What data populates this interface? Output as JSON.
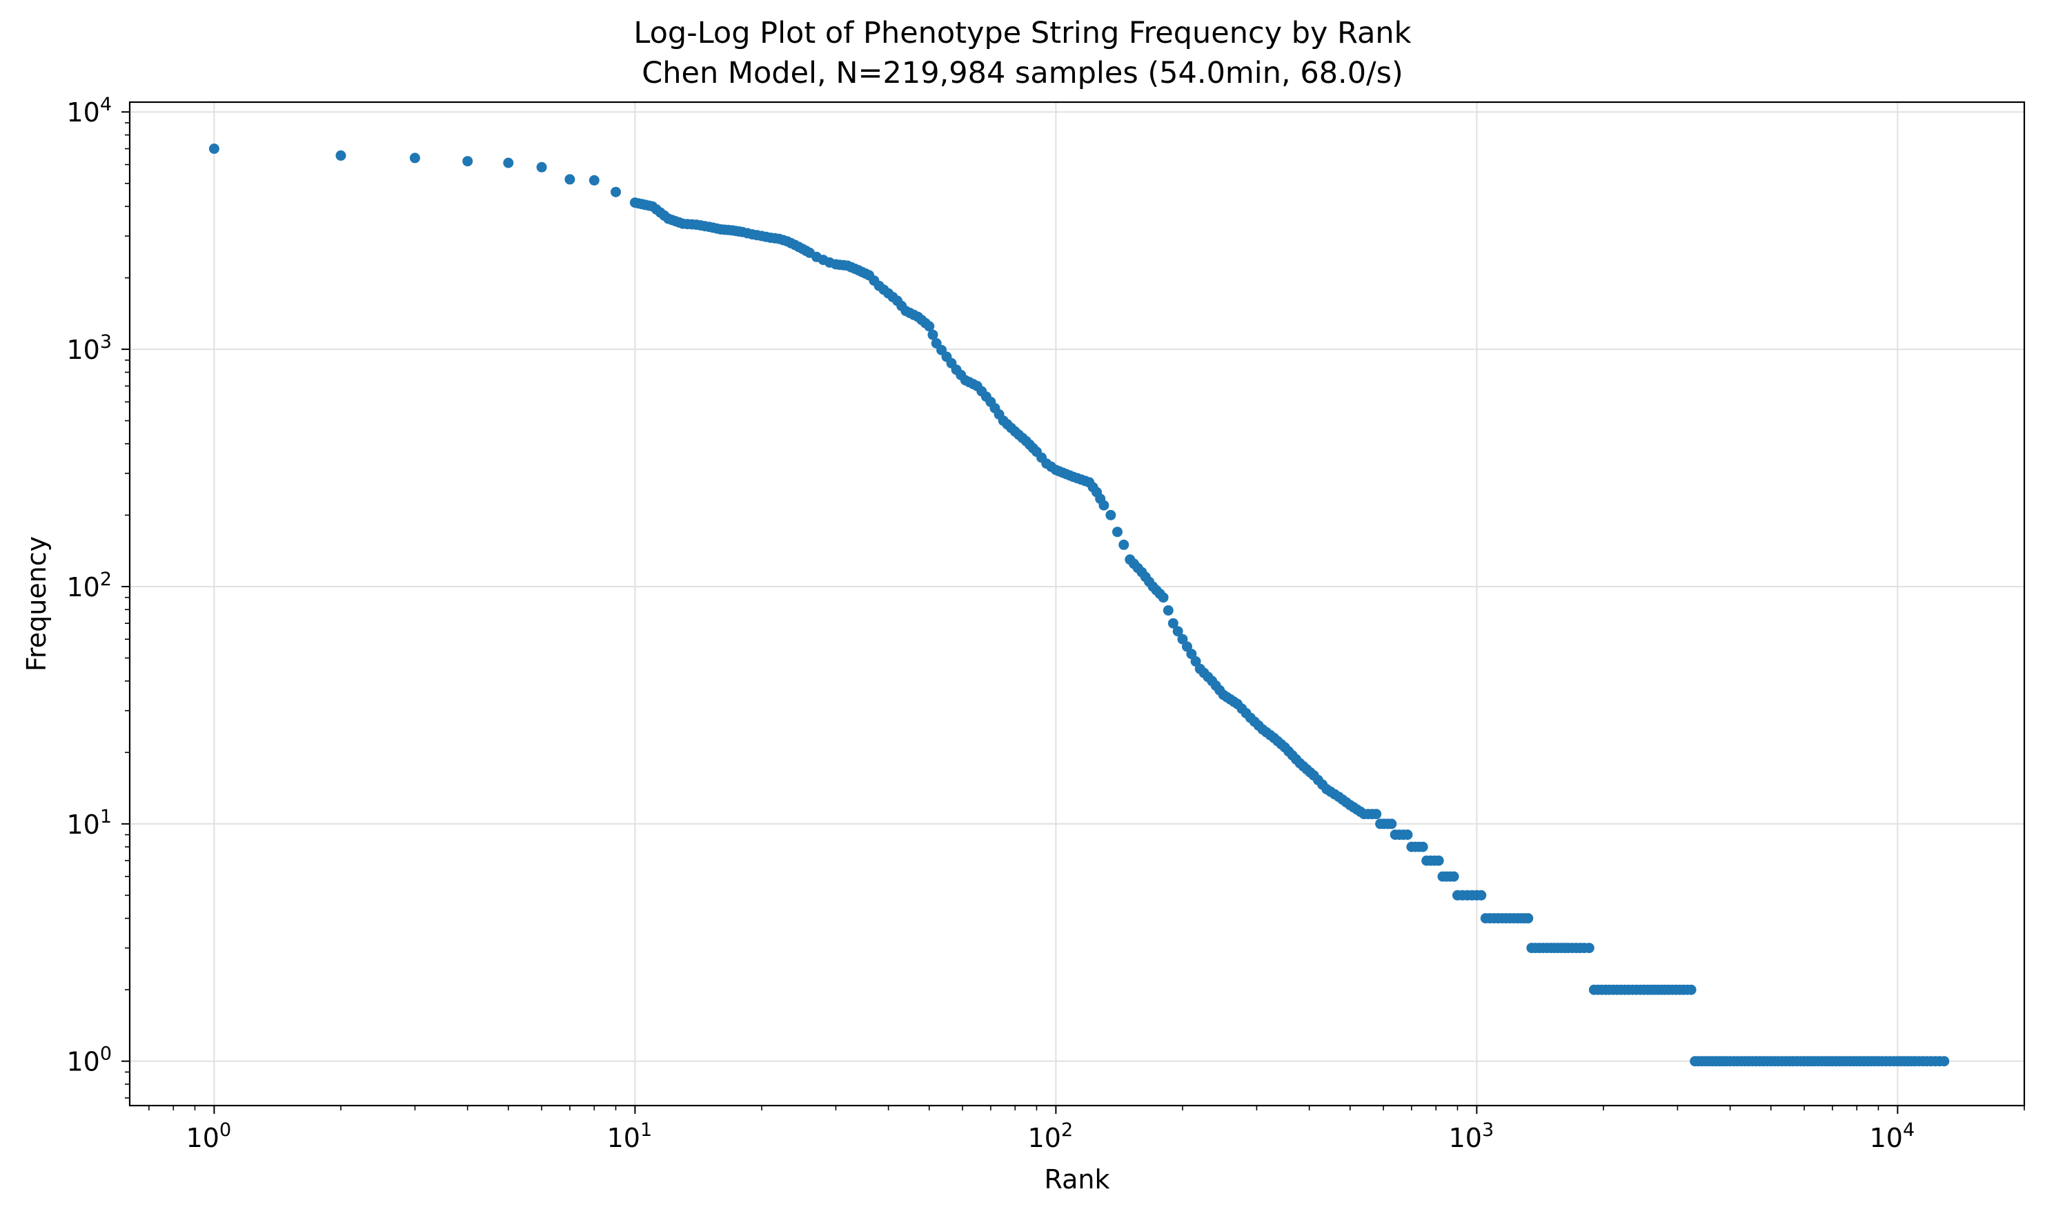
{
  "chart_data": {
    "type": "scatter",
    "title": "Log-Log Plot of Phenotype String Frequency by Rank",
    "subtitle": "Chen Model, N=219,984 samples (54.0min, 68.0/s)",
    "xlabel": "Rank",
    "ylabel": "Frequency",
    "xscale": "log",
    "yscale": "log",
    "xlim": [
      0.63,
      20000
    ],
    "ylim": [
      0.65,
      11000
    ],
    "grid": true,
    "legend": false,
    "color": "#1f77b4",
    "x_ticks": [
      {
        "base": "10",
        "exp": "0",
        "value": 1
      },
      {
        "base": "10",
        "exp": "1",
        "value": 10
      },
      {
        "base": "10",
        "exp": "2",
        "value": 100
      },
      {
        "base": "10",
        "exp": "3",
        "value": 1000
      },
      {
        "base": "10",
        "exp": "4",
        "value": 10000
      }
    ],
    "y_ticks": [
      {
        "base": "10",
        "exp": "0",
        "value": 1
      },
      {
        "base": "10",
        "exp": "1",
        "value": 10
      },
      {
        "base": "10",
        "exp": "2",
        "value": 100
      },
      {
        "base": "10",
        "exp": "3",
        "value": 1000
      },
      {
        "base": "10",
        "exp": "4",
        "value": 10000
      }
    ],
    "points": [
      [
        1,
        7000
      ],
      [
        2,
        6550
      ],
      [
        3,
        6400
      ],
      [
        4,
        6200
      ],
      [
        5,
        6100
      ],
      [
        6,
        5850
      ],
      [
        7,
        5200
      ],
      [
        8,
        5150
      ],
      [
        9,
        4600
      ],
      [
        10,
        4150
      ],
      [
        11,
        4000
      ],
      [
        12,
        3550
      ],
      [
        13,
        3380
      ],
      [
        14,
        3350
      ],
      [
        15,
        3280
      ],
      [
        16,
        3200
      ],
      [
        17,
        3170
      ],
      [
        18,
        3120
      ],
      [
        19,
        3050
      ],
      [
        20,
        3000
      ],
      [
        21,
        2950
      ],
      [
        22,
        2920
      ],
      [
        23,
        2850
      ],
      [
        24,
        2750
      ],
      [
        25,
        2650
      ],
      [
        26,
        2550
      ],
      [
        27,
        2450
      ],
      [
        28,
        2380
      ],
      [
        29,
        2320
      ],
      [
        30,
        2280
      ],
      [
        32,
        2250
      ],
      [
        34,
        2150
      ],
      [
        36,
        2050
      ],
      [
        38,
        1850
      ],
      [
        40,
        1720
      ],
      [
        42,
        1600
      ],
      [
        44,
        1450
      ],
      [
        47,
        1370
      ],
      [
        50,
        1250
      ],
      [
        52,
        1060
      ],
      [
        55,
        930
      ],
      [
        58,
        820
      ],
      [
        61,
        740
      ],
      [
        65,
        700
      ],
      [
        70,
        600
      ],
      [
        75,
        500
      ],
      [
        80,
        450
      ],
      [
        85,
        410
      ],
      [
        90,
        370
      ],
      [
        95,
        330
      ],
      [
        100,
        310
      ],
      [
        110,
        290
      ],
      [
        120,
        275
      ],
      [
        125,
        250
      ],
      [
        130,
        220
      ],
      [
        135,
        200
      ],
      [
        140,
        170
      ],
      [
        145,
        150
      ],
      [
        150,
        130
      ],
      [
        160,
        115
      ],
      [
        170,
        100
      ],
      [
        180,
        90
      ],
      [
        190,
        70
      ],
      [
        200,
        60
      ],
      [
        210,
        52
      ],
      [
        220,
        45
      ],
      [
        235,
        40
      ],
      [
        250,
        35
      ],
      [
        270,
        32
      ],
      [
        290,
        28
      ],
      [
        310,
        25
      ],
      [
        330,
        23
      ],
      [
        350,
        21
      ],
      [
        380,
        18
      ],
      [
        410,
        16
      ],
      [
        440,
        14
      ],
      [
        470,
        13
      ],
      [
        500,
        12
      ],
      [
        540,
        11
      ],
      [
        590,
        10
      ],
      [
        640,
        9
      ],
      [
        700,
        8
      ],
      [
        760,
        7
      ],
      [
        830,
        6
      ],
      [
        900,
        5
      ],
      [
        950,
        5
      ],
      [
        1000,
        5
      ],
      [
        1050,
        4
      ],
      [
        1150,
        4
      ],
      [
        1250,
        4
      ],
      [
        1350,
        3
      ],
      [
        1500,
        3
      ],
      [
        1650,
        3
      ],
      [
        1800,
        3
      ],
      [
        1900,
        2
      ],
      [
        2200,
        2
      ],
      [
        2500,
        2
      ],
      [
        2800,
        2
      ],
      [
        3100,
        2
      ],
      [
        3300,
        1
      ],
      [
        4000,
        1
      ],
      [
        5000,
        1
      ],
      [
        6000,
        1
      ],
      [
        7000,
        1
      ],
      [
        8000,
        1
      ],
      [
        9000,
        1
      ],
      [
        10000,
        1
      ],
      [
        11000,
        1
      ],
      [
        12000,
        1
      ],
      [
        12900,
        1
      ]
    ]
  }
}
